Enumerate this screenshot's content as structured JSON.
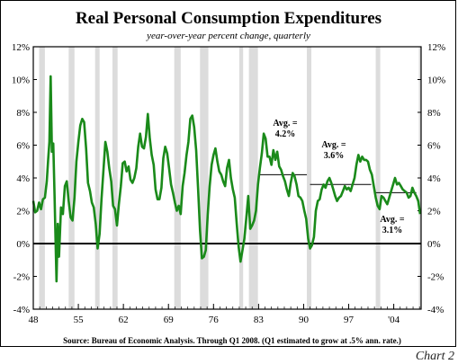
{
  "chart_data": {
    "type": "line",
    "title": "Real Personal Consumption Expenditures",
    "subtitle": "year-over-year percent change, quarterly",
    "source": "Source:  Bureau of Economic Analysis. Through Q1 2008. (Q1 estimated to grow at .5% ann. rate.)",
    "chart_label": "Chart 2",
    "xlim": [
      1948,
      2008.25
    ],
    "ylim": [
      -4,
      12
    ],
    "x_ticks": [
      {
        "value": 1948,
        "label": "48"
      },
      {
        "value": 1955,
        "label": "55"
      },
      {
        "value": 1962,
        "label": "62"
      },
      {
        "value": 1969,
        "label": "69"
      },
      {
        "value": 1976,
        "label": "76"
      },
      {
        "value": 1983,
        "label": "83"
      },
      {
        "value": 1990,
        "label": "90"
      },
      {
        "value": 1997,
        "label": "97"
      },
      {
        "value": 2004,
        "label": "'04"
      }
    ],
    "y_ticks": [
      {
        "value": 12,
        "label": "12%"
      },
      {
        "value": 10,
        "label": "10%"
      },
      {
        "value": 8,
        "label": "8%"
      },
      {
        "value": 6,
        "label": "6%"
      },
      {
        "value": 4,
        "label": "4%"
      },
      {
        "value": 2,
        "label": "2%"
      },
      {
        "value": 0,
        "label": "0%"
      },
      {
        "value": -2,
        "label": "-2%"
      },
      {
        "value": -4,
        "label": "-4%"
      }
    ],
    "recessions": [
      [
        1948.9,
        1949.8
      ],
      [
        1953.5,
        1954.4
      ],
      [
        1957.6,
        1958.3
      ],
      [
        1960.3,
        1961.1
      ],
      [
        1969.9,
        1970.9
      ],
      [
        1973.9,
        1975.2
      ],
      [
        1980.0,
        1980.6
      ],
      [
        1981.5,
        1982.9
      ],
      [
        1990.5,
        1991.2
      ],
      [
        2001.2,
        2001.9
      ],
      [
        2007.9,
        2008.25
      ]
    ],
    "averages": [
      {
        "label_line1": "Avg. =",
        "label_line2": "4.2%",
        "value": 4.2,
        "x_start": 1983,
        "x_end": 1990.5
      },
      {
        "label_line1": "Avg. =",
        "label_line2": "3.6%",
        "value": 3.6,
        "x_start": 1991,
        "x_end": 2000.5
      },
      {
        "label_line1": "Avg. =",
        "label_line2": "3.1%",
        "value": 3.1,
        "x_start": 2001,
        "x_end": 2007.5
      }
    ],
    "series": [
      {
        "color": "#1a8a1a",
        "points": [
          [
            1948.0,
            2.6
          ],
          [
            1948.3,
            1.9
          ],
          [
            1948.6,
            2.0
          ],
          [
            1948.9,
            2.5
          ],
          [
            1949.2,
            2.1
          ],
          [
            1949.5,
            2.7
          ],
          [
            1949.8,
            2.8
          ],
          [
            1950.1,
            3.8
          ],
          [
            1950.3,
            5.1
          ],
          [
            1950.5,
            6.2
          ],
          [
            1950.7,
            10.2
          ],
          [
            1950.9,
            5.6
          ],
          [
            1951.1,
            6.1
          ],
          [
            1951.3,
            3.0
          ],
          [
            1951.5,
            -0.4
          ],
          [
            1951.6,
            -2.3
          ],
          [
            1951.8,
            1.2
          ],
          [
            1952.0,
            -0.8
          ],
          [
            1952.3,
            2.2
          ],
          [
            1952.6,
            1.8
          ],
          [
            1952.9,
            3.5
          ],
          [
            1953.2,
            3.8
          ],
          [
            1953.5,
            2.6
          ],
          [
            1953.8,
            1.6
          ],
          [
            1954.1,
            1.4
          ],
          [
            1954.4,
            2.8
          ],
          [
            1954.7,
            5.0
          ],
          [
            1955.0,
            6.2
          ],
          [
            1955.3,
            7.2
          ],
          [
            1955.6,
            7.6
          ],
          [
            1955.9,
            7.4
          ],
          [
            1956.2,
            5.8
          ],
          [
            1956.5,
            3.7
          ],
          [
            1956.8,
            3.2
          ],
          [
            1957.1,
            2.5
          ],
          [
            1957.4,
            2.2
          ],
          [
            1957.7,
            1.2
          ],
          [
            1958.0,
            -0.3
          ],
          [
            1958.3,
            0.6
          ],
          [
            1958.6,
            2.7
          ],
          [
            1958.9,
            4.5
          ],
          [
            1959.2,
            6.2
          ],
          [
            1959.5,
            5.6
          ],
          [
            1959.8,
            4.6
          ],
          [
            1960.1,
            3.8
          ],
          [
            1960.4,
            2.3
          ],
          [
            1960.7,
            2.1
          ],
          [
            1961.0,
            1.1
          ],
          [
            1961.3,
            2.4
          ],
          [
            1961.6,
            3.5
          ],
          [
            1961.9,
            4.9
          ],
          [
            1962.2,
            5.0
          ],
          [
            1962.5,
            4.4
          ],
          [
            1962.8,
            4.7
          ],
          [
            1963.1,
            3.9
          ],
          [
            1963.4,
            3.7
          ],
          [
            1963.7,
            4.0
          ],
          [
            1964.0,
            4.6
          ],
          [
            1964.3,
            5.9
          ],
          [
            1964.6,
            6.7
          ],
          [
            1964.9,
            5.9
          ],
          [
            1965.2,
            5.8
          ],
          [
            1965.5,
            6.5
          ],
          [
            1965.8,
            7.9
          ],
          [
            1966.1,
            6.4
          ],
          [
            1966.4,
            5.4
          ],
          [
            1966.7,
            4.8
          ],
          [
            1967.0,
            3.3
          ],
          [
            1967.3,
            2.7
          ],
          [
            1967.6,
            2.7
          ],
          [
            1967.9,
            3.4
          ],
          [
            1968.2,
            5.2
          ],
          [
            1968.5,
            5.9
          ],
          [
            1968.8,
            5.5
          ],
          [
            1969.1,
            4.6
          ],
          [
            1969.4,
            3.6
          ],
          [
            1969.7,
            3.1
          ],
          [
            1970.0,
            2.5
          ],
          [
            1970.3,
            2.0
          ],
          [
            1970.6,
            2.3
          ],
          [
            1970.9,
            1.8
          ],
          [
            1971.2,
            3.5
          ],
          [
            1971.5,
            4.3
          ],
          [
            1971.8,
            5.4
          ],
          [
            1972.1,
            6.2
          ],
          [
            1972.4,
            7.6
          ],
          [
            1972.7,
            7.8
          ],
          [
            1973.0,
            7.1
          ],
          [
            1973.3,
            5.7
          ],
          [
            1973.6,
            3.4
          ],
          [
            1973.9,
            0.8
          ],
          [
            1974.2,
            -0.9
          ],
          [
            1974.5,
            -0.8
          ],
          [
            1974.8,
            -0.4
          ],
          [
            1975.1,
            1.8
          ],
          [
            1975.4,
            3.5
          ],
          [
            1975.7,
            4.8
          ],
          [
            1976.0,
            5.4
          ],
          [
            1976.3,
            5.8
          ],
          [
            1976.6,
            5.0
          ],
          [
            1976.9,
            4.4
          ],
          [
            1977.2,
            4.2
          ],
          [
            1977.5,
            3.8
          ],
          [
            1977.8,
            3.5
          ],
          [
            1978.1,
            4.6
          ],
          [
            1978.4,
            5.1
          ],
          [
            1978.7,
            4.0
          ],
          [
            1979.0,
            3.3
          ],
          [
            1979.3,
            2.8
          ],
          [
            1979.6,
            1.2
          ],
          [
            1979.9,
            -0.2
          ],
          [
            1980.2,
            -1.1
          ],
          [
            1980.5,
            -0.4
          ],
          [
            1980.8,
            0.3
          ],
          [
            1981.1,
            1.6
          ],
          [
            1981.4,
            2.9
          ],
          [
            1981.7,
            0.9
          ],
          [
            1982.0,
            1.1
          ],
          [
            1982.3,
            1.4
          ],
          [
            1982.6,
            2.0
          ],
          [
            1982.9,
            3.6
          ],
          [
            1983.2,
            4.6
          ],
          [
            1983.5,
            5.5
          ],
          [
            1983.8,
            6.7
          ],
          [
            1984.1,
            6.4
          ],
          [
            1984.4,
            5.3
          ],
          [
            1984.7,
            5.3
          ],
          [
            1985.0,
            4.8
          ],
          [
            1985.3,
            5.7
          ],
          [
            1985.6,
            5.1
          ],
          [
            1985.9,
            5.6
          ],
          [
            1986.2,
            4.7
          ],
          [
            1986.5,
            4.5
          ],
          [
            1986.8,
            4.1
          ],
          [
            1987.1,
            3.8
          ],
          [
            1987.4,
            3.3
          ],
          [
            1987.7,
            2.9
          ],
          [
            1988.0,
            3.7
          ],
          [
            1988.3,
            4.3
          ],
          [
            1988.6,
            4.1
          ],
          [
            1988.9,
            3.6
          ],
          [
            1989.2,
            2.9
          ],
          [
            1989.5,
            2.8
          ],
          [
            1989.8,
            2.6
          ],
          [
            1990.1,
            2.0
          ],
          [
            1990.4,
            1.5
          ],
          [
            1990.7,
            0.3
          ],
          [
            1991.0,
            -0.3
          ],
          [
            1991.3,
            -0.1
          ],
          [
            1991.6,
            0.4
          ],
          [
            1991.9,
            2.0
          ],
          [
            1992.2,
            2.6
          ],
          [
            1992.5,
            2.7
          ],
          [
            1992.8,
            3.3
          ],
          [
            1993.1,
            3.6
          ],
          [
            1993.4,
            3.4
          ],
          [
            1993.7,
            3.8
          ],
          [
            1994.0,
            4.0
          ],
          [
            1994.3,
            3.7
          ],
          [
            1994.6,
            3.3
          ],
          [
            1994.9,
            2.9
          ],
          [
            1995.2,
            2.6
          ],
          [
            1995.5,
            2.8
          ],
          [
            1995.8,
            2.9
          ],
          [
            1996.1,
            3.2
          ],
          [
            1996.4,
            3.5
          ],
          [
            1996.7,
            3.3
          ],
          [
            1997.0,
            3.4
          ],
          [
            1997.3,
            3.2
          ],
          [
            1997.6,
            3.6
          ],
          [
            1997.9,
            4.0
          ],
          [
            1998.2,
            4.8
          ],
          [
            1998.5,
            5.4
          ],
          [
            1998.8,
            5.0
          ],
          [
            1999.1,
            5.3
          ],
          [
            1999.4,
            5.1
          ],
          [
            1999.7,
            5.1
          ],
          [
            2000.0,
            5.0
          ],
          [
            2000.3,
            4.5
          ],
          [
            2000.6,
            4.2
          ],
          [
            2000.9,
            3.5
          ],
          [
            2001.2,
            2.8
          ],
          [
            2001.5,
            2.3
          ],
          [
            2001.8,
            2.1
          ],
          [
            2002.1,
            2.9
          ],
          [
            2002.4,
            2.8
          ],
          [
            2002.7,
            2.6
          ],
          [
            2003.0,
            2.4
          ],
          [
            2003.3,
            2.8
          ],
          [
            2003.6,
            3.2
          ],
          [
            2003.9,
            3.6
          ],
          [
            2004.2,
            4.0
          ],
          [
            2004.5,
            3.6
          ],
          [
            2004.8,
            3.7
          ],
          [
            2005.1,
            3.5
          ],
          [
            2005.4,
            3.3
          ],
          [
            2005.7,
            3.2
          ],
          [
            2006.0,
            3.1
          ],
          [
            2006.3,
            2.8
          ],
          [
            2006.6,
            2.9
          ],
          [
            2006.9,
            3.4
          ],
          [
            2007.2,
            3.1
          ],
          [
            2007.5,
            2.9
          ],
          [
            2007.8,
            2.6
          ],
          [
            2008.1,
            1.8
          ]
        ]
      }
    ]
  }
}
